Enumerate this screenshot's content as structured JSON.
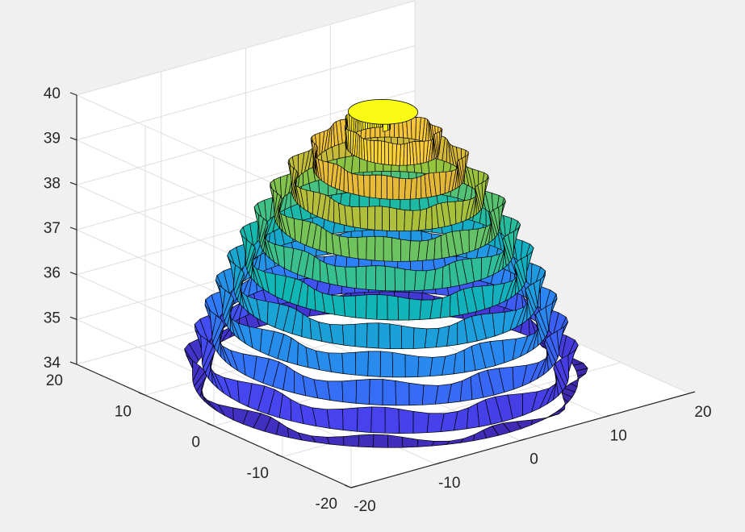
{
  "chart_data": {
    "type": "surface3d",
    "title": "",
    "xlabel": "",
    "ylabel": "",
    "zlabel": "",
    "xlim": [
      -20,
      20
    ],
    "ylim": [
      -20,
      20
    ],
    "zlim": [
      34,
      40
    ],
    "x_ticks": [
      "-20",
      "-10",
      "0",
      "10",
      "20"
    ],
    "y_ticks": [
      "-20",
      "-10",
      "0",
      "10",
      "20"
    ],
    "z_ticks": [
      "34",
      "35",
      "36",
      "37",
      "38",
      "39",
      "40"
    ],
    "grid": true,
    "colormap": "parula",
    "edge_color": "#000000",
    "surface": {
      "shape": "spiral-cone",
      "z_top": 40,
      "z_bottom": 34,
      "base_radius": 18,
      "turns": 11
    }
  }
}
